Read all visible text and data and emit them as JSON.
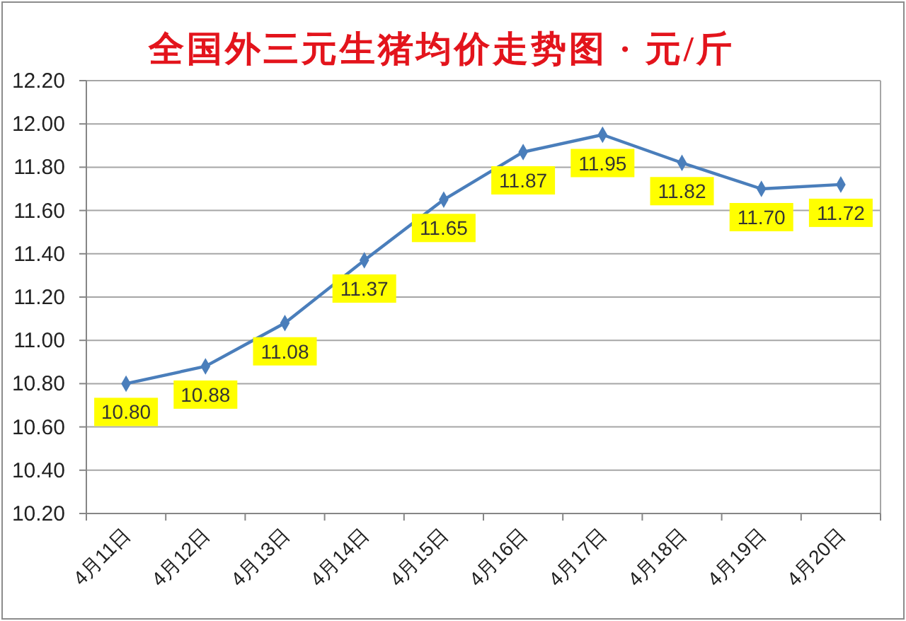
{
  "chart_data": {
    "type": "line",
    "title": "全国外三元生猪均价走势图 · 元/斤",
    "categories": [
      "4月11日",
      "4月12日",
      "4月13日",
      "4月14日",
      "4月15日",
      "4月16日",
      "4月17日",
      "4月18日",
      "4月19日",
      "4月20日"
    ],
    "series": [
      {
        "color": "#4a7ebb",
        "values": [
          10.8,
          10.88,
          11.08,
          11.37,
          11.65,
          11.87,
          11.95,
          11.82,
          11.7,
          11.72
        ],
        "value_labels": [
          "10.80",
          "10.88",
          "11.08",
          "11.37",
          "11.65",
          "11.87",
          "11.95",
          "11.82",
          "11.70",
          "11.72"
        ]
      }
    ],
    "ylim": [
      10.2,
      12.2
    ],
    "yticks": [
      {
        "value": 10.2,
        "label": "10.20"
      },
      {
        "value": 10.4,
        "label": "10.40"
      },
      {
        "value": 10.6,
        "label": "10.60"
      },
      {
        "value": 10.8,
        "label": "10.80"
      },
      {
        "value": 11,
        "label": "11.00"
      },
      {
        "value": 11.2,
        "label": "11.20"
      },
      {
        "value": 11.4,
        "label": "11.40"
      },
      {
        "value": 11.6,
        "label": "11.60"
      },
      {
        "value": 11.8,
        "label": "11.80"
      },
      {
        "value": 12,
        "label": "12.00"
      },
      {
        "value": 12.2,
        "label": "12.20"
      }
    ],
    "grid": "y",
    "marker": "diamond"
  }
}
